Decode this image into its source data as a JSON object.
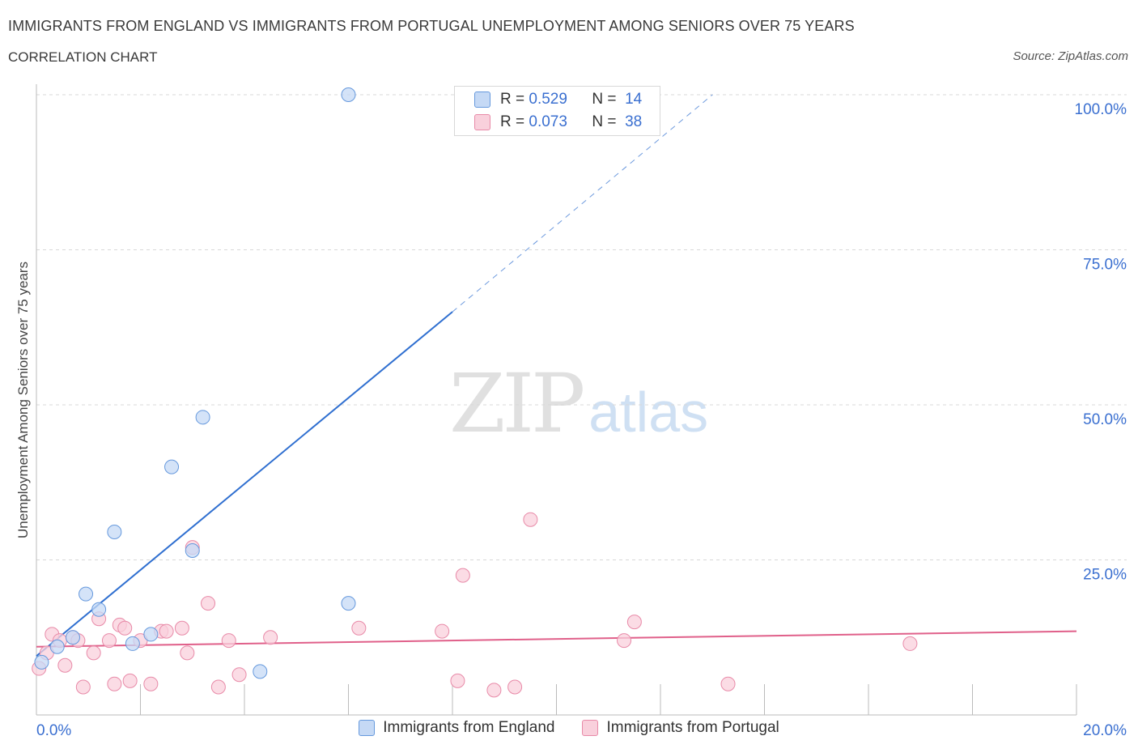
{
  "header": {
    "title": "IMMIGRANTS FROM ENGLAND VS IMMIGRANTS FROM PORTUGAL UNEMPLOYMENT AMONG SENIORS OVER 75 YEARS",
    "subtitle": "CORRELATION CHART",
    "source": "Source: ZipAtlas.com"
  },
  "watermark": {
    "zip": "ZIP",
    "atlas": "atlas"
  },
  "colors": {
    "england": "#6699dd",
    "england_fill": "#c5d9f5",
    "england_line": "#2f6fd0",
    "portugal": "#e88aa8",
    "portugal_fill": "#f9d0dc",
    "portugal_line": "#e0608a",
    "axis_label": "#3a6fd0",
    "grid": "#d8d8d8"
  },
  "legend": {
    "england": {
      "r_label": "R =",
      "r_value": "0.529",
      "n_label": "N =",
      "n_value": "14"
    },
    "portugal": {
      "r_label": "R =",
      "r_value": "0.073",
      "n_label": "N =",
      "n_value": "38"
    }
  },
  "chart_data": {
    "type": "scatter",
    "title": "IMMIGRANTS FROM ENGLAND VS IMMIGRANTS FROM PORTUGAL UNEMPLOYMENT AMONG SENIORS OVER 75 YEARS",
    "xlabel": "",
    "ylabel": "Unemployment Among Seniors over 75 years",
    "xlim": [
      0,
      20
    ],
    "ylim": [
      0,
      100
    ],
    "x_tick_labels": [
      "0.0%",
      "20.0%"
    ],
    "y_tick_labels": [
      "25.0%",
      "50.0%",
      "75.0%",
      "100.0%"
    ],
    "y_ticks": [
      25,
      50,
      75,
      100
    ],
    "series": [
      {
        "name": "Immigrants from England",
        "points": [
          [
            0.1,
            8.5
          ],
          [
            0.4,
            11
          ],
          [
            0.7,
            12.5
          ],
          [
            0.95,
            19.5
          ],
          [
            1.2,
            17
          ],
          [
            1.5,
            29.5
          ],
          [
            1.85,
            11.5
          ],
          [
            2.2,
            13
          ],
          [
            2.6,
            40
          ],
          [
            3.0,
            26.5
          ],
          [
            3.2,
            48
          ],
          [
            4.3,
            7
          ],
          [
            6.0,
            100
          ],
          [
            6.0,
            18
          ]
        ],
        "trend": {
          "x0": 0,
          "y0": 9.5,
          "x1": 8,
          "y1": 65,
          "dash_to_x": 13,
          "dash_to_y": 100
        }
      },
      {
        "name": "Immigrants from Portugal",
        "points": [
          [
            0.05,
            7.5
          ],
          [
            0.2,
            10
          ],
          [
            0.3,
            13
          ],
          [
            0.45,
            12
          ],
          [
            0.55,
            8
          ],
          [
            0.7,
            12.5
          ],
          [
            0.8,
            12
          ],
          [
            0.9,
            4.5
          ],
          [
            1.1,
            10
          ],
          [
            1.2,
            15.5
          ],
          [
            1.4,
            12
          ],
          [
            1.5,
            5
          ],
          [
            1.6,
            14.5
          ],
          [
            1.7,
            14
          ],
          [
            1.8,
            5.5
          ],
          [
            2.0,
            12
          ],
          [
            2.2,
            5
          ],
          [
            2.4,
            13.5
          ],
          [
            2.5,
            13.5
          ],
          [
            2.8,
            14
          ],
          [
            2.9,
            10
          ],
          [
            3.0,
            27
          ],
          [
            3.3,
            18
          ],
          [
            3.5,
            4.5
          ],
          [
            3.7,
            12
          ],
          [
            3.9,
            6.5
          ],
          [
            4.5,
            12.5
          ],
          [
            6.2,
            14
          ],
          [
            7.8,
            13.5
          ],
          [
            8.1,
            5.5
          ],
          [
            8.2,
            22.5
          ],
          [
            8.8,
            4
          ],
          [
            9.2,
            4.5
          ],
          [
            9.5,
            31.5
          ],
          [
            11.3,
            12
          ],
          [
            11.5,
            15
          ],
          [
            13.3,
            5
          ],
          [
            16.8,
            11.5
          ]
        ],
        "trend": {
          "x0": 0,
          "y0": 11,
          "x1": 20,
          "y1": 13.5
        }
      }
    ]
  },
  "bottom_legend": [
    "Immigrants from England",
    "Immigrants from Portugal"
  ]
}
